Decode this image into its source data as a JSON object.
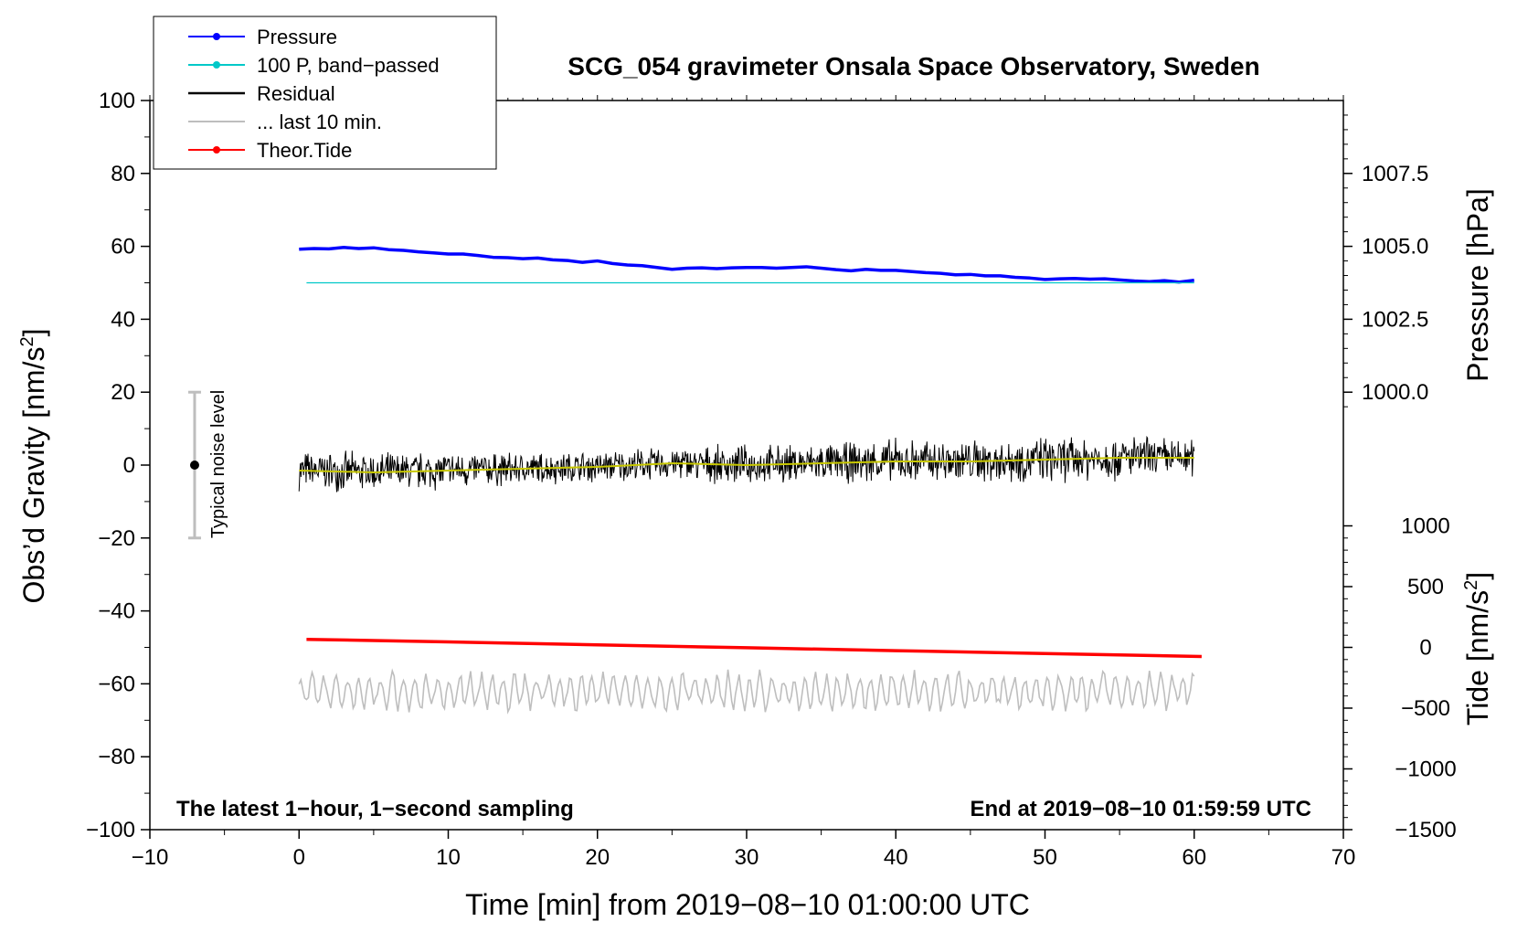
{
  "chart_data": {
    "type": "line",
    "title": "SCG_054 gravimeter Onsala Space Observatory, Sweden",
    "xlabel": "Time [min] from 2019−08−10 01:00:00 UTC",
    "ylabel_left_main": "Obs’d Gravity [nm/s",
    "ylabel_left_sup": "2",
    "ylabel_left_end": "]",
    "ylabel_right_pressure": "Pressure [hPa]",
    "ylabel_right_tide_main": "Tide [nm/s",
    "ylabel_right_tide_sup": "2",
    "ylabel_right_tide_end": "]",
    "xlim": [
      -10,
      70
    ],
    "ylim": [
      -100,
      100
    ],
    "x_ticks": [
      {
        "value": -10,
        "label": "−10"
      },
      {
        "value": 0,
        "label": "0"
      },
      {
        "value": 10,
        "label": "10"
      },
      {
        "value": 20,
        "label": "20"
      },
      {
        "value": 30,
        "label": "30"
      },
      {
        "value": 40,
        "label": "40"
      },
      {
        "value": 50,
        "label": "50"
      },
      {
        "value": 60,
        "label": "60"
      },
      {
        "value": 70,
        "label": "70"
      }
    ],
    "y_ticks": [
      {
        "value": 100,
        "label": "100"
      },
      {
        "value": 80,
        "label": "80"
      },
      {
        "value": 60,
        "label": "60"
      },
      {
        "value": 40,
        "label": "40"
      },
      {
        "value": 20,
        "label": "20"
      },
      {
        "value": 0,
        "label": "0"
      },
      {
        "value": -20,
        "label": "−20"
      },
      {
        "value": -40,
        "label": "−40"
      },
      {
        "value": -60,
        "label": "−60"
      },
      {
        "value": -80,
        "label": "−80"
      },
      {
        "value": -100,
        "label": "−100"
      }
    ],
    "pressure_axis": {
      "ticks": [
        {
          "value": 1007.5,
          "label": "1007.5"
        },
        {
          "value": 1005.0,
          "label": "1005.0"
        },
        {
          "value": 1002.5,
          "label": "1002.5"
        },
        {
          "value": 1000.0,
          "label": "1000.0"
        }
      ],
      "gravity_at_1005": 60,
      "gravity_per_hpa": 8
    },
    "tide_axis": {
      "ticks": [
        {
          "value": 1000,
          "label": "1000"
        },
        {
          "value": 500,
          "label": "500"
        },
        {
          "value": 0,
          "label": "0"
        },
        {
          "value": -500,
          "label": "−500"
        },
        {
          "value": -1000,
          "label": "−1000"
        },
        {
          "value": -1500,
          "label": "−1500"
        }
      ],
      "gravity_at_0": -50,
      "gravity_per_unit": 0.03333
    },
    "legend": {
      "placement": "top-left",
      "entries": [
        {
          "label": "Pressure",
          "color": "#0000ff",
          "marker": true
        },
        {
          "label": "100 P, band−passed",
          "color": "#00c8c8",
          "marker": true
        },
        {
          "label": "Residual",
          "color": "#000000",
          "marker": false
        },
        {
          "label": "... last 10 min.",
          "color": "#bebebe",
          "marker": false
        },
        {
          "label": "Theor.Tide",
          "color": "#ff0000",
          "marker": true
        }
      ]
    },
    "noise_bar": {
      "x": -7,
      "center": 0,
      "half_range": 20,
      "label": "Typical noise level"
    },
    "annotations": {
      "left": "The latest 1−hour, 1−second sampling",
      "right": "End at 2019−08−10 01:59:59 UTC"
    },
    "series": [
      {
        "name": "Pressure",
        "color": "#0000ff",
        "x": [
          0,
          1,
          2,
          3,
          4,
          5,
          6,
          7,
          8,
          9,
          10,
          11,
          12,
          13,
          14,
          15,
          16,
          17,
          18,
          19,
          20,
          21,
          22,
          23,
          24,
          25,
          26,
          27,
          28,
          29,
          30,
          31,
          32,
          33,
          34,
          35,
          36,
          37,
          38,
          39,
          40,
          41,
          42,
          43,
          44,
          45,
          46,
          47,
          48,
          49,
          50,
          51,
          52,
          53,
          54,
          55,
          56,
          57,
          58,
          59,
          60
        ],
        "y": [
          59.2,
          59.4,
          59.3,
          59.7,
          59.4,
          59.6,
          59.1,
          58.9,
          58.5,
          58.2,
          57.9,
          57.9,
          57.5,
          57.0,
          56.9,
          56.6,
          56.8,
          56.3,
          56.1,
          55.6,
          56.0,
          55.3,
          54.9,
          54.7,
          54.2,
          53.7,
          54.0,
          54.1,
          53.9,
          54.1,
          54.2,
          54.2,
          54.0,
          54.2,
          54.4,
          54.0,
          53.6,
          53.3,
          53.7,
          53.4,
          53.4,
          53.1,
          52.8,
          52.6,
          52.2,
          52.3,
          51.9,
          51.9,
          51.5,
          51.3,
          50.9,
          51.1,
          51.2,
          51.0,
          51.1,
          50.8,
          50.5,
          50.3,
          50.6,
          50.2,
          50.7
        ]
      },
      {
        "name": "100 P, band−passed",
        "color": "#00c8c8",
        "x": [
          0.5,
          60
        ],
        "y": [
          50,
          50
        ]
      },
      {
        "name": "Theor.Tide",
        "color": "#ff0000",
        "x": [
          0.5,
          10,
          20,
          30,
          40,
          50,
          60.5
        ],
        "y": [
          -47.8,
          -48.5,
          -49.3,
          -50.1,
          -50.9,
          -51.7,
          -52.5
        ]
      },
      {
        "name": "Residual mean",
        "color": "#c8c800",
        "x": [
          0,
          5,
          10,
          15,
          20,
          25,
          30,
          35,
          40,
          45,
          50,
          55,
          60
        ],
        "y": [
          -1.5,
          -2.0,
          -1.5,
          -1.0,
          -0.5,
          0.5,
          0.0,
          0.5,
          1.0,
          1.0,
          1.5,
          2.0,
          2.0
        ]
      }
    ],
    "residual_envelope": {
      "name": "Residual",
      "color": "#000000",
      "x": [
        0,
        5,
        10,
        15,
        20,
        25,
        30,
        35,
        40,
        45,
        50,
        55,
        60
      ],
      "center": [
        -1.5,
        -2.0,
        -1.5,
        -1.0,
        -0.5,
        0.5,
        0.0,
        0.5,
        1.0,
        1.0,
        1.5,
        2.0,
        2.0
      ],
      "amplitude": [
        6,
        6,
        6,
        5,
        5,
        5,
        6,
        6,
        7,
        7,
        7,
        7,
        6
      ]
    },
    "last10": {
      "name": "... last 10 min.",
      "color": "#bebebe",
      "x_start": 0,
      "x_end": 60,
      "center": -62,
      "amplitude": 6
    }
  }
}
